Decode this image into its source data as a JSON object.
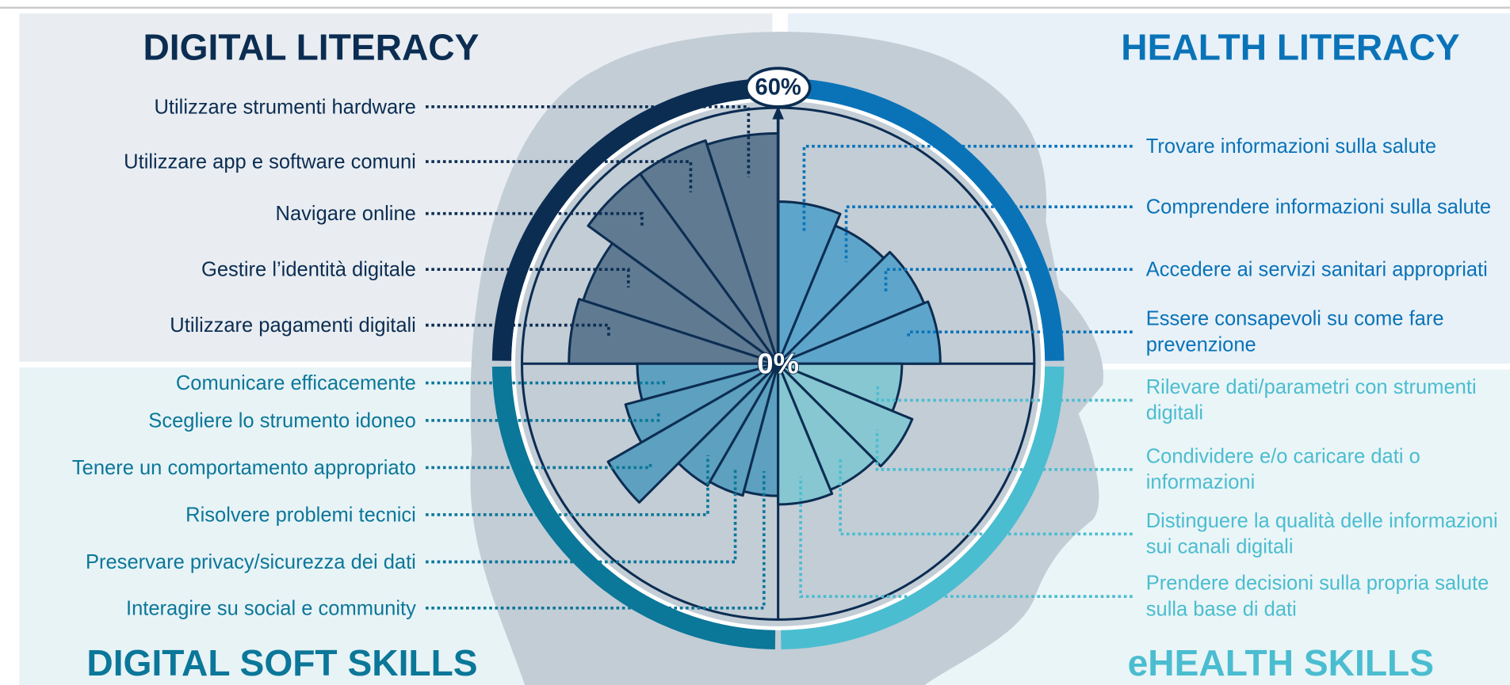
{
  "chart_data": {
    "type": "rose",
    "rlim": [
      0,
      60
    ],
    "rticks": [
      {
        "value": 0,
        "label": "0%"
      },
      {
        "value": 60,
        "label": "60%"
      }
    ],
    "series": [
      {
        "name": "DIGITAL LITERACY",
        "color": "#5f7a91",
        "accent": "#0c2d52",
        "categories": [
          "Utilizzare strumenti hardware",
          "Utilizzare app e software comuni",
          "Navigare online",
          "Gestire l’identità digitale",
          "Utilizzare pagamenti digitali"
        ],
        "values": [
          54,
          55,
          55,
          48,
          49
        ]
      },
      {
        "name": "HEALTH LITERACY",
        "color": "#5ea5cb",
        "accent": "#0a73b8",
        "categories": [
          "Trovare informazioni sulla salute",
          "Comprendere informazioni sulla salute",
          "Accedere ai servizi sanitari appropriati",
          "Essere consapevoli su come fare prevenzione"
        ],
        "values": [
          38,
          35,
          37,
          38
        ]
      },
      {
        "name": "DIGITAL SOFT SKILLS",
        "color": "#5da0bf",
        "accent": "#0b7799",
        "categories": [
          "Comunicare efficacemente",
          "Scegliere lo strumento idoneo",
          "Tenere un comportamento appropriato",
          "Risolvere problemi tecnici",
          "Preservare privacy/sicurezza dei dati",
          "Interagire su social e community"
        ],
        "values": [
          33,
          37,
          46,
          33,
          32,
          31
        ]
      },
      {
        "name": "eHEALTH SKILLS",
        "color": "#86c7d2",
        "accent": "#4bbdd0",
        "categories": [
          "Rilevare dati/parametri con strumenti digitali",
          "Condividere e/o caricare dati o informazioni",
          "Distinguere la qualità delle informazioni sui canali digitali",
          "Prendere decisioni sulla propria salute sulla base di dati"
        ],
        "values": [
          29,
          34,
          32,
          33
        ]
      }
    ]
  }
}
